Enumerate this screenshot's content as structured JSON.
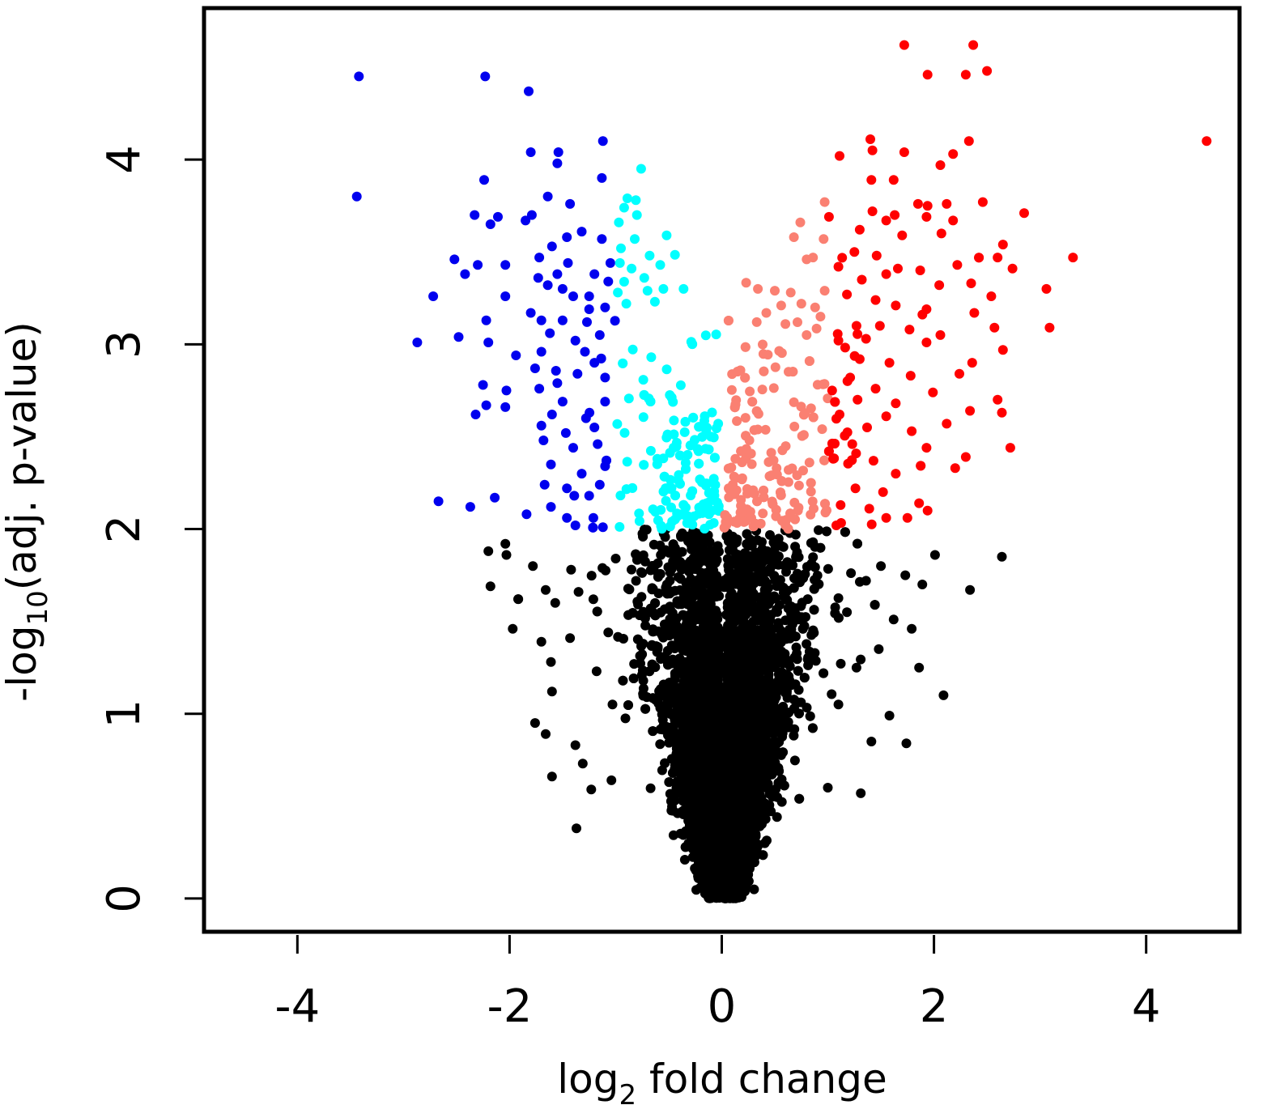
{
  "chart_data": {
    "type": "scatter",
    "title": "",
    "xlabel": {
      "prefix": "log",
      "subscript": "2",
      "suffix": " fold change"
    },
    "ylabel": {
      "prefix": "-log",
      "subscript": "10",
      "suffix": "(adj. p-value)"
    },
    "xlim": [
      -4.88,
      4.88
    ],
    "ylim": [
      -0.18,
      4.82
    ],
    "x_ticks": [
      -4,
      -2,
      0,
      2,
      4
    ],
    "x_tick_labels": [
      "-4",
      "-2",
      "0",
      "2",
      "4"
    ],
    "y_ticks": [
      0,
      1,
      2,
      3,
      4
    ],
    "y_tick_labels": [
      "0",
      "1",
      "2",
      "3",
      "4"
    ],
    "grid": false,
    "legend": "none",
    "thresholds": {
      "padj_log10": 2,
      "log2fc_strong": 1
    },
    "colors": {
      "not_significant": "#000000",
      "down_strong": "#0000ee",
      "down_moderate": "#00ffff",
      "up_moderate": "#fa8072",
      "up_strong": "#ff0000"
    },
    "series": [
      {
        "group": "down_strong",
        "points": [
          [
            -3.42,
            4.45
          ],
          [
            -3.44,
            3.8
          ],
          [
            -2.23,
            4.45
          ],
          [
            -1.82,
            4.37
          ],
          [
            -1.8,
            4.04
          ],
          [
            -1.54,
            4.04
          ],
          [
            -1.55,
            3.98
          ],
          [
            -1.12,
            4.1
          ],
          [
            -1.13,
            3.9
          ],
          [
            -2.24,
            3.89
          ],
          [
            -1.64,
            3.8
          ],
          [
            -1.43,
            3.76
          ],
          [
            -2.33,
            3.7
          ],
          [
            -2.18,
            3.65
          ],
          [
            -2.11,
            3.69
          ],
          [
            -1.79,
            3.7
          ],
          [
            -1.85,
            3.67
          ],
          [
            -1.46,
            3.58
          ],
          [
            -1.32,
            3.61
          ],
          [
            -1.13,
            3.57
          ],
          [
            -1.6,
            3.53
          ],
          [
            -2.52,
            3.46
          ],
          [
            -2.42,
            3.38
          ],
          [
            -2.3,
            3.43
          ],
          [
            -2.04,
            3.43
          ],
          [
            -1.72,
            3.47
          ],
          [
            -1.55,
            3.38
          ],
          [
            -1.2,
            3.38
          ],
          [
            -1.05,
            3.44
          ],
          [
            -2.72,
            3.26
          ],
          [
            -2.04,
            3.26
          ],
          [
            -1.73,
            3.36
          ],
          [
            -1.64,
            3.32
          ],
          [
            -1.5,
            3.3
          ],
          [
            -1.4,
            3.26
          ],
          [
            -1.25,
            3.26
          ],
          [
            -2.22,
            3.13
          ],
          [
            -1.8,
            3.17
          ],
          [
            -1.7,
            3.13
          ],
          [
            -1.5,
            3.13
          ],
          [
            -1.25,
            3.19
          ],
          [
            -1.1,
            3.2
          ],
          [
            -2.87,
            3.01
          ],
          [
            -2.48,
            3.04
          ],
          [
            -2.2,
            3.01
          ],
          [
            -1.94,
            2.94
          ],
          [
            -1.7,
            2.96
          ],
          [
            -1.38,
            3.02
          ],
          [
            -1.15,
            3.05
          ],
          [
            -1.76,
            2.87
          ],
          [
            -1.36,
            2.84
          ],
          [
            -1.2,
            2.9
          ],
          [
            -2.25,
            2.78
          ],
          [
            -2.03,
            2.75
          ],
          [
            -1.72,
            2.76
          ],
          [
            -1.5,
            2.69
          ],
          [
            -1.1,
            2.82
          ],
          [
            -2.22,
            2.67
          ],
          [
            -2.04,
            2.66
          ],
          [
            -1.6,
            2.62
          ],
          [
            -1.28,
            2.6
          ],
          [
            -2.32,
            2.62
          ],
          [
            -1.7,
            2.56
          ],
          [
            -1.47,
            2.52
          ],
          [
            -1.2,
            2.55
          ],
          [
            -1.4,
            2.44
          ],
          [
            -1.17,
            2.46
          ],
          [
            -1.61,
            2.35
          ],
          [
            -1.32,
            2.3
          ],
          [
            -1.1,
            2.34
          ],
          [
            -1.67,
            2.24
          ],
          [
            -1.46,
            2.22
          ],
          [
            -1.15,
            2.24
          ],
          [
            -2.67,
            2.15
          ],
          [
            -2.14,
            2.17
          ],
          [
            -1.61,
            2.12
          ],
          [
            -1.25,
            2.18
          ],
          [
            -2.37,
            2.12
          ],
          [
            -1.84,
            2.08
          ],
          [
            -1.46,
            2.06
          ],
          [
            -1.21,
            2.06
          ],
          [
            -1.38,
            2.02
          ],
          [
            -1.12,
            2.01
          ],
          [
            -1.45,
            3.44
          ],
          [
            -1.07,
            3.34
          ],
          [
            -1.62,
            3.06
          ],
          [
            -1.29,
            2.96
          ],
          [
            -1.55,
            2.79
          ],
          [
            -1.1,
            2.69
          ],
          [
            -1.68,
            2.48
          ],
          [
            -1.39,
            2.18
          ]
        ]
      },
      {
        "group": "down_moderate",
        "points": [
          [
            -0.76,
            3.95
          ],
          [
            -0.89,
            3.79
          ],
          [
            -0.81,
            3.78
          ],
          [
            -0.92,
            3.74
          ],
          [
            -0.8,
            3.7
          ],
          [
            -0.97,
            3.66
          ],
          [
            -0.52,
            3.59
          ],
          [
            -0.82,
            3.57
          ],
          [
            -0.95,
            3.52
          ],
          [
            -0.68,
            3.48
          ],
          [
            -0.96,
            3.44
          ],
          [
            -0.58,
            3.43
          ],
          [
            -0.85,
            3.41
          ],
          [
            -0.73,
            3.36
          ],
          [
            -0.36,
            3.3
          ],
          [
            -0.98,
            3.28
          ],
          [
            -0.7,
            3.29
          ],
          [
            -0.55,
            3.3
          ],
          [
            -0.9,
            3.22
          ],
          [
            -0.63,
            3.23
          ]
        ]
      },
      {
        "group": "up_moderate",
        "points": [
          [
            0.97,
            3.77
          ],
          [
            0.74,
            3.66
          ],
          [
            0.68,
            3.58
          ],
          [
            0.86,
            3.47
          ],
          [
            0.96,
            3.57
          ],
          [
            0.8,
            3.46
          ],
          [
            0.34,
            3.3
          ],
          [
            0.5,
            3.29
          ],
          [
            0.97,
            3.29
          ],
          [
            0.65,
            3.28
          ],
          [
            0.75,
            3.22
          ],
          [
            0.88,
            3.2
          ],
          [
            0.56,
            3.21
          ],
          [
            0.42,
            3.17
          ],
          [
            0.93,
            3.15
          ],
          [
            0.6,
            3.11
          ],
          [
            0.33,
            3.12
          ],
          [
            0.8,
            3.05
          ]
        ]
      },
      {
        "group": "up_strong",
        "points": [
          [
            1.72,
            4.62
          ],
          [
            2.37,
            4.62
          ],
          [
            2.3,
            4.46
          ],
          [
            2.5,
            4.48
          ],
          [
            1.94,
            4.46
          ],
          [
            4.57,
            4.1
          ],
          [
            1.4,
            4.11
          ],
          [
            1.42,
            4.05
          ],
          [
            2.33,
            4.1
          ],
          [
            1.72,
            4.04
          ],
          [
            2.18,
            4.03
          ],
          [
            1.11,
            4.02
          ],
          [
            2.06,
            3.97
          ],
          [
            1.41,
            3.89
          ],
          [
            1.62,
            3.89
          ],
          [
            1.85,
            3.76
          ],
          [
            1.94,
            3.75
          ],
          [
            2.12,
            3.76
          ],
          [
            2.46,
            3.77
          ],
          [
            1.42,
            3.72
          ],
          [
            1.63,
            3.7
          ],
          [
            2.85,
            3.71
          ],
          [
            1.01,
            3.69
          ],
          [
            1.55,
            3.67
          ],
          [
            1.93,
            3.69
          ],
          [
            2.18,
            3.67
          ],
          [
            1.3,
            3.62
          ],
          [
            1.7,
            3.59
          ],
          [
            2.07,
            3.6
          ],
          [
            2.65,
            3.54
          ],
          [
            1.25,
            3.5
          ],
          [
            1.46,
            3.48
          ],
          [
            2.6,
            3.47
          ],
          [
            3.31,
            3.47
          ],
          [
            1.1,
            3.42
          ],
          [
            1.66,
            3.41
          ],
          [
            1.87,
            3.4
          ],
          [
            2.22,
            3.43
          ],
          [
            2.74,
            3.41
          ],
          [
            1.32,
            3.35
          ],
          [
            1.55,
            3.38
          ],
          [
            2.05,
            3.32
          ],
          [
            2.35,
            3.33
          ],
          [
            3.06,
            3.3
          ],
          [
            1.18,
            3.27
          ],
          [
            1.45,
            3.24
          ],
          [
            2.54,
            3.26
          ],
          [
            1.64,
            3.21
          ],
          [
            1.93,
            3.19
          ],
          [
            2.38,
            3.17
          ],
          [
            3.09,
            3.09
          ],
          [
            1.27,
            3.1
          ],
          [
            1.49,
            3.1
          ],
          [
            1.77,
            3.08
          ],
          [
            2.06,
            3.05
          ],
          [
            2.57,
            3.09
          ],
          [
            1.1,
            3.02
          ],
          [
            1.36,
            3.03
          ],
          [
            1.93,
            3.01
          ],
          [
            2.65,
            2.97
          ],
          [
            1.3,
            2.92
          ],
          [
            1.58,
            2.9
          ],
          [
            2.36,
            2.9
          ],
          [
            1.21,
            2.82
          ],
          [
            1.78,
            2.83
          ],
          [
            2.24,
            2.84
          ],
          [
            1.04,
            2.75
          ],
          [
            1.45,
            2.76
          ],
          [
            1.99,
            2.74
          ],
          [
            1.28,
            2.7
          ],
          [
            1.64,
            2.68
          ],
          [
            2.6,
            2.7
          ],
          [
            1.11,
            2.62
          ],
          [
            1.55,
            2.61
          ],
          [
            2.34,
            2.64
          ],
          [
            2.64,
            2.63
          ],
          [
            1.37,
            2.55
          ],
          [
            1.79,
            2.53
          ],
          [
            2.12,
            2.57
          ],
          [
            1.23,
            2.46
          ],
          [
            1.93,
            2.44
          ],
          [
            2.72,
            2.44
          ],
          [
            1.05,
            2.38
          ],
          [
            1.43,
            2.37
          ],
          [
            2.3,
            2.39
          ],
          [
            1.64,
            2.3
          ],
          [
            2.2,
            2.33
          ],
          [
            1.26,
            2.22
          ],
          [
            1.52,
            2.2
          ],
          [
            1.86,
            2.14
          ],
          [
            1.12,
            2.13
          ],
          [
            1.39,
            2.11
          ],
          [
            1.94,
            2.1
          ],
          [
            1.55,
            2.06
          ],
          [
            1.75,
            2.06
          ],
          [
            1.08,
            2.02
          ]
        ]
      },
      {
        "group": "not_significant",
        "points": [
          [
            -2.04,
            1.92
          ],
          [
            -2.2,
            1.88
          ],
          [
            -2.03,
            1.86
          ],
          [
            -1.78,
            1.8
          ],
          [
            -2.18,
            1.69
          ],
          [
            -1.66,
            1.67
          ],
          [
            -1.57,
            1.6
          ],
          [
            -1.97,
            1.46
          ],
          [
            -1.42,
            1.78
          ],
          [
            -1.35,
            1.66
          ],
          [
            -1.7,
            1.39
          ],
          [
            -1.61,
            1.28
          ],
          [
            -1.43,
            1.41
          ],
          [
            -1.6,
            1.12
          ],
          [
            -1.76,
            0.95
          ],
          [
            -1.66,
            0.89
          ],
          [
            -1.38,
            0.83
          ],
          [
            -1.31,
            0.73
          ],
          [
            -1.6,
            0.66
          ],
          [
            -1.23,
            0.59
          ],
          [
            -1.37,
            0.38
          ],
          [
            -1.04,
            0.64
          ],
          [
            -1.03,
            1.05
          ],
          [
            -1.18,
            1.23
          ],
          [
            -1.07,
            1.44
          ],
          [
            -1.21,
            1.62
          ],
          [
            -1.0,
            1.84
          ],
          [
            2.64,
            1.85
          ],
          [
            2.01,
            1.86
          ],
          [
            1.73,
            1.75
          ],
          [
            1.89,
            1.7
          ],
          [
            2.34,
            1.67
          ],
          [
            1.62,
            1.51
          ],
          [
            1.79,
            1.46
          ],
          [
            1.48,
            1.35
          ],
          [
            1.86,
            1.25
          ],
          [
            2.09,
            1.1
          ],
          [
            1.58,
            0.99
          ],
          [
            1.41,
            0.85
          ],
          [
            1.74,
            0.84
          ],
          [
            1.0,
            0.6
          ],
          [
            1.31,
            0.57
          ],
          [
            1.1,
            1.05
          ],
          [
            1.18,
            1.55
          ],
          [
            1.27,
            1.25
          ],
          [
            1.36,
            1.72
          ],
          [
            1.5,
            1.8
          ]
        ]
      }
    ]
  }
}
